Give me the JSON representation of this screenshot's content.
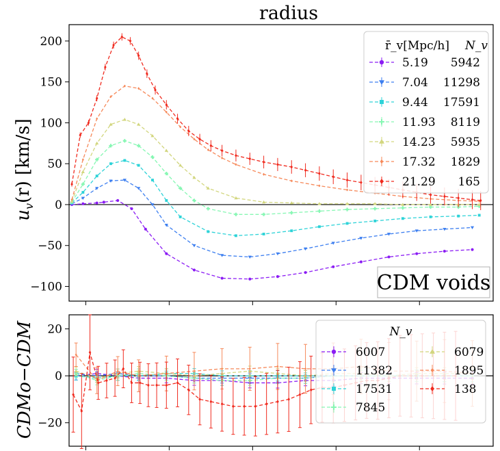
{
  "chart_data": [
    {
      "type": "line",
      "title": "radius",
      "ylabel": "u_v(r) [km/s]",
      "ylabel_main": "u",
      "ylabel_sub": "v",
      "ylabel_rest": "(r) [km/s]",
      "xlabel": "",
      "xlim": [
        0.0,
        3.05
      ],
      "ylim": [
        -118,
        220
      ],
      "yticks": [
        200,
        150,
        100,
        50,
        0,
        -50,
        -100
      ],
      "ytick_labels": [
        "200",
        "150",
        "100",
        "50",
        "0",
        "−50",
        "−100"
      ],
      "annotation": "CDM voids",
      "legend_header_r": "r̄_v[Mpc/h]",
      "legend_header_n": "N_v",
      "series": [
        {
          "name": "5.19",
          "N": "5942",
          "color": "#8b1cf4",
          "marker": "circle",
          "x": [
            0.02,
            0.1,
            0.2,
            0.25,
            0.35,
            0.45,
            0.55,
            0.7,
            0.9,
            1.1,
            1.3,
            1.5,
            1.7,
            1.9,
            2.1,
            2.3,
            2.5,
            2.7,
            2.9
          ],
          "y": [
            0,
            1,
            2,
            3,
            5,
            -5,
            -30,
            -60,
            -80,
            -90,
            -91,
            -88,
            -83,
            -76,
            -70,
            -64,
            -60,
            -57,
            -55
          ]
        },
        {
          "name": "7.04",
          "N": "11298",
          "color": "#3d7ff0",
          "marker": "tri_down",
          "x": [
            0.02,
            0.1,
            0.2,
            0.3,
            0.4,
            0.5,
            0.6,
            0.7,
            0.9,
            1.1,
            1.3,
            1.5,
            1.7,
            1.9,
            2.1,
            2.3,
            2.5,
            2.7,
            2.9
          ],
          "y": [
            1,
            8,
            20,
            29,
            30,
            20,
            0,
            -25,
            -50,
            -62,
            -64,
            -60,
            -54,
            -47,
            -41,
            -36,
            -32,
            -30,
            -28
          ]
        },
        {
          "name": "9.44",
          "N": "17591",
          "color": "#2ed3d8",
          "marker": "square",
          "x": [
            0.02,
            0.1,
            0.2,
            0.3,
            0.4,
            0.5,
            0.6,
            0.7,
            0.8,
            1.0,
            1.2,
            1.4,
            1.6,
            1.8,
            2.0,
            2.2,
            2.4,
            2.6,
            2.8,
            2.95
          ],
          "y": [
            2,
            15,
            35,
            50,
            54,
            48,
            30,
            5,
            -15,
            -33,
            -38,
            -36,
            -32,
            -27,
            -23,
            -20,
            -17,
            -15,
            -14,
            -13
          ]
        },
        {
          "name": "11.93",
          "N": "8119",
          "color": "#86f7b3",
          "marker": "plus",
          "x": [
            0.02,
            0.1,
            0.2,
            0.3,
            0.4,
            0.5,
            0.6,
            0.7,
            0.8,
            0.9,
            1.0,
            1.2,
            1.4,
            1.6,
            1.8,
            2.0,
            2.2,
            2.4,
            2.6,
            2.8,
            2.95
          ],
          "y": [
            3,
            25,
            55,
            72,
            78,
            72,
            58,
            38,
            20,
            5,
            -5,
            -12,
            -12,
            -10,
            -8,
            -6,
            -5,
            -4,
            -3,
            -3,
            -2
          ]
        },
        {
          "name": "14.23",
          "N": "5935",
          "color": "#d2d67e",
          "marker": "triangle",
          "x": [
            0.02,
            0.1,
            0.2,
            0.3,
            0.4,
            0.5,
            0.6,
            0.7,
            0.8,
            0.9,
            1.0,
            1.2,
            1.4,
            1.6,
            1.8,
            2.0,
            2.2,
            2.4,
            2.6,
            2.8,
            2.95
          ],
          "y": [
            4,
            40,
            75,
            98,
            104,
            98,
            84,
            66,
            48,
            33,
            20,
            8,
            3,
            2,
            1,
            1,
            1,
            0,
            0,
            0,
            0
          ]
        },
        {
          "name": "17.32",
          "N": "1829",
          "color": "#f6895a",
          "marker": "diamond_small",
          "x": [
            0.02,
            0.1,
            0.2,
            0.3,
            0.4,
            0.5,
            0.6,
            0.7,
            0.8,
            0.9,
            1.0,
            1.1,
            1.2,
            1.4,
            1.6,
            1.8,
            2.0,
            2.2,
            2.4,
            2.6,
            2.8,
            2.95
          ],
          "y": [
            6,
            55,
            105,
            132,
            145,
            142,
            130,
            113,
            95,
            80,
            67,
            57,
            49,
            37,
            29,
            23,
            18,
            14,
            10,
            7,
            5,
            4
          ]
        },
        {
          "name": "21.29",
          "N": "165",
          "color": "#f02a1e",
          "marker": "diamond",
          "x": [
            0.02,
            0.08,
            0.14,
            0.2,
            0.26,
            0.32,
            0.38,
            0.44,
            0.5,
            0.56,
            0.62,
            0.7,
            0.78,
            0.86,
            0.94,
            1.02,
            1.1,
            1.2,
            1.3,
            1.4,
            1.5,
            1.6,
            1.7,
            1.8,
            1.9,
            2.0,
            2.1,
            2.2,
            2.3,
            2.4,
            2.5,
            2.6,
            2.7,
            2.8,
            2.9,
            2.96
          ],
          "y": [
            25,
            85,
            100,
            130,
            168,
            195,
            205,
            200,
            182,
            160,
            140,
            122,
            105,
            90,
            80,
            72,
            66,
            60,
            56,
            52,
            49,
            46,
            42,
            38,
            34,
            30,
            27,
            24,
            21,
            18,
            15,
            12,
            10,
            8,
            6,
            5
          ]
        }
      ]
    },
    {
      "type": "line",
      "title": "",
      "ylabel": "CDMo−CDM",
      "xlabel": "",
      "xlim": [
        0.0,
        3.05
      ],
      "ylim": [
        -30,
        26
      ],
      "yticks": [
        20,
        0,
        -20
      ],
      "ytick_labels": [
        "20",
        "0",
        "−20"
      ],
      "legend_header": "N_v",
      "series": [
        {
          "name": "6007",
          "color": "#8b1cf4",
          "marker": "circle",
          "x": [
            0.05,
            0.2,
            0.35,
            0.5,
            0.7,
            0.9,
            1.1,
            1.3,
            1.5,
            1.7,
            1.9,
            2.1,
            2.3,
            2.5,
            2.7,
            2.9
          ],
          "y": [
            0,
            1,
            0,
            -1,
            -1,
            -2,
            -2,
            -3,
            -3,
            -2,
            -2,
            -1,
            -1,
            -1,
            -1,
            -1
          ]
        },
        {
          "name": "11382",
          "color": "#3d7ff0",
          "marker": "tri_down",
          "x": [
            0.05,
            0.2,
            0.35,
            0.5,
            0.7,
            0.9,
            1.1,
            1.3,
            1.5,
            1.7,
            1.9,
            2.1,
            2.3,
            2.5,
            2.7,
            2.9
          ],
          "y": [
            1,
            0,
            1,
            0,
            0,
            -1,
            -1,
            -1,
            -1,
            -1,
            0,
            0,
            0,
            0,
            0,
            0
          ]
        },
        {
          "name": "17531",
          "color": "#2ed3d8",
          "marker": "square",
          "x": [
            0.05,
            0.2,
            0.35,
            0.5,
            0.7,
            0.9,
            1.1,
            1.3,
            1.5,
            1.7,
            1.9,
            2.1,
            2.3,
            2.5,
            2.7,
            2.9
          ],
          "y": [
            0,
            -1,
            0,
            0,
            1,
            1,
            0,
            0,
            0,
            0,
            0,
            0,
            0,
            0,
            0,
            0
          ]
        },
        {
          "name": "7845",
          "color": "#86f7b3",
          "marker": "plus",
          "x": [
            0.05,
            0.2,
            0.35,
            0.5,
            0.7,
            0.9,
            1.1,
            1.3,
            1.5,
            1.7,
            1.9,
            2.1,
            2.3,
            2.5,
            2.7,
            2.9
          ],
          "y": [
            1,
            -2,
            0,
            1,
            0,
            -1,
            -2,
            -2,
            -1,
            -1,
            0,
            0,
            0,
            0,
            0,
            0
          ]
        },
        {
          "name": "6079",
          "color": "#d2d67e",
          "marker": "triangle",
          "x": [
            0.05,
            0.2,
            0.35,
            0.5,
            0.7,
            0.9,
            1.1,
            1.3,
            1.5,
            1.7,
            1.9,
            2.1,
            2.3,
            2.5,
            2.7,
            2.9
          ],
          "y": [
            2,
            -1,
            1,
            2,
            1,
            0,
            1,
            2,
            1,
            0,
            1,
            1,
            0,
            1,
            1,
            1
          ]
        },
        {
          "name": "1895",
          "color": "#f6895a",
          "marker": "diamond_small",
          "x": [
            0.05,
            0.2,
            0.35,
            0.5,
            0.7,
            0.9,
            1.1,
            1.3,
            1.5,
            1.7,
            1.9,
            2.1,
            2.3,
            2.5,
            2.7,
            2.9
          ],
          "y": [
            9,
            -2,
            2,
            0,
            1,
            2,
            3,
            3,
            4,
            3,
            3,
            4,
            2,
            2,
            2,
            1
          ]
        },
        {
          "name": "138",
          "color": "#f02a1e",
          "marker": "diamond",
          "x": [
            0.03,
            0.09,
            0.15,
            0.21,
            0.27,
            0.33,
            0.39,
            0.45,
            0.51,
            0.57,
            0.63,
            0.7,
            0.78,
            0.86,
            0.94,
            1.02,
            1.1,
            1.18,
            1.26,
            1.34,
            1.42,
            1.5,
            1.58,
            1.66,
            1.74,
            1.82,
            1.9,
            1.98,
            2.06,
            2.14,
            2.22,
            2.3,
            2.38,
            2.46,
            2.54,
            2.62,
            2.7,
            2.78
          ],
          "y": [
            -8,
            -15,
            10,
            -3,
            -2,
            -1,
            3,
            -3,
            -3,
            -4,
            -4,
            -4,
            -3,
            -6,
            -10,
            -11,
            -12,
            -13,
            -13,
            -13,
            -12,
            -11,
            -10,
            -8,
            -6,
            -5,
            -5,
            -4,
            -3,
            -2,
            -2,
            -1,
            0,
            0,
            0,
            0,
            0,
            0
          ]
        }
      ]
    }
  ]
}
